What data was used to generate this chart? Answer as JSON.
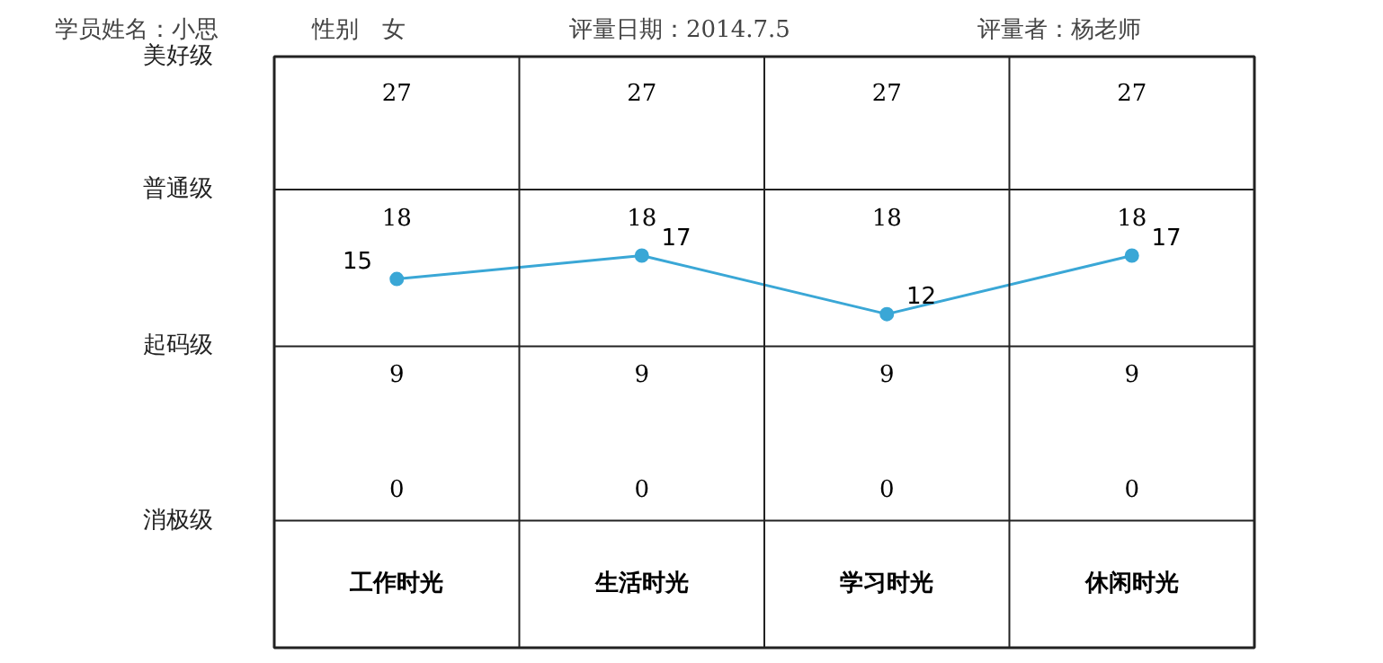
{
  "chart_data": {
    "type": "line",
    "title": "学员姓名：小思　　　　性别　女　　　　　　　评量日期：2014.7.5　　　　　　　　评量者：杨老师",
    "categories": [
      "工作时光",
      "生活时光",
      "学习时光",
      "休闲时光"
    ],
    "series": [
      {
        "color": "#3aa7d6",
        "values": [
          15,
          17,
          12,
          17
        ]
      }
    ],
    "annotations": [
      "美好级",
      "普通级",
      "起码级",
      "消极级",
      "27",
      "18",
      "9",
      "0"
    ],
    "grid": true,
    "marker": "circle",
    "line_style": "solid",
    "data_labels": true
  }
}
